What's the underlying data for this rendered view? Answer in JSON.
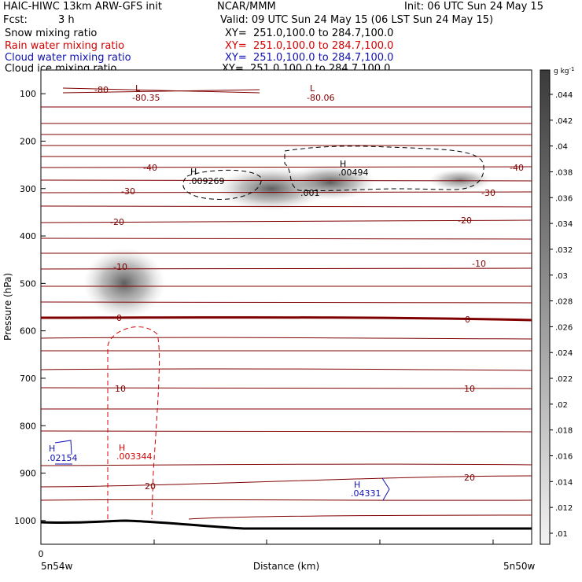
{
  "header": {
    "model": "HAIC-HIWC 13km ARW-GFS init",
    "org": "NCAR/MMM",
    "init": "Init: 06 UTC Sun 24 May 15",
    "fcst_label": "Fcst:",
    "fcst_value": "3 h",
    "valid": "Valid: 09 UTC Sun 24 May 15 (06 LST Sun 24 May 15)"
  },
  "fields": [
    {
      "name": "Snow mixing ratio",
      "xy": "XY=  251.0,100.0 to 284.7,100.0",
      "color": "#000000"
    },
    {
      "name": "Rain water mixing ratio",
      "xy": "XY=  251.0,100.0 to 284.7,100.0",
      "color": "#d40000"
    },
    {
      "name": "Cloud water mixing ratio",
      "xy": "XY=  251.0,100.0 to 284.7,100.0",
      "color": "#1010b0"
    },
    {
      "name": "Cloud ice mixing ratio",
      "xy": "XY=  251.0,100.0 to 284.7,100.0",
      "color": "#000000"
    }
  ],
  "chart_data": {
    "type": "contour",
    "ylabel": "Pressure (hPa)",
    "xlabel": "Distance (km)",
    "x_start_label": "5n54w",
    "x_end_label": "5n50w",
    "x_zero_label": "0",
    "yticks": [
      100,
      200,
      300,
      400,
      500,
      600,
      700,
      800,
      900,
      1000
    ],
    "ylim": [
      1050,
      50
    ],
    "temperature_contour_labels": [
      "-80",
      "-40",
      "-40",
      "-30",
      "-30",
      "-20",
      "-20",
      "-10",
      "-10",
      "0",
      "0",
      "10",
      "10",
      "20",
      "20"
    ],
    "extrema": [
      {
        "type": "L",
        "value": "-80.35",
        "color": "#800000"
      },
      {
        "type": "L",
        "value": "-80.06",
        "color": "#800000"
      },
      {
        "type": "H",
        "value": ".009269",
        "color": "#000000"
      },
      {
        "type": "H",
        "value": ".00494",
        "color": "#000000"
      },
      {
        "type": "",
        "value": ".001",
        "color": "#000000"
      },
      {
        "type": "H",
        "value": ".003344",
        "color": "#d40000"
      },
      {
        "type": "H",
        "value": ".02154",
        "color": "#1010b0"
      },
      {
        "type": "H",
        "value": ".04331",
        "color": "#1010b0"
      }
    ],
    "colorbar": {
      "unit": "g kg",
      "unit_exp": "-1",
      "ticks": [
        ".044",
        ".042",
        ".04",
        ".038",
        ".036",
        ".034",
        ".032",
        ".03",
        ".028",
        ".026",
        ".024",
        ".022",
        ".02",
        ".018",
        ".016",
        ".014",
        ".012",
        ".01"
      ],
      "range": [
        0.01,
        0.045
      ]
    }
  }
}
